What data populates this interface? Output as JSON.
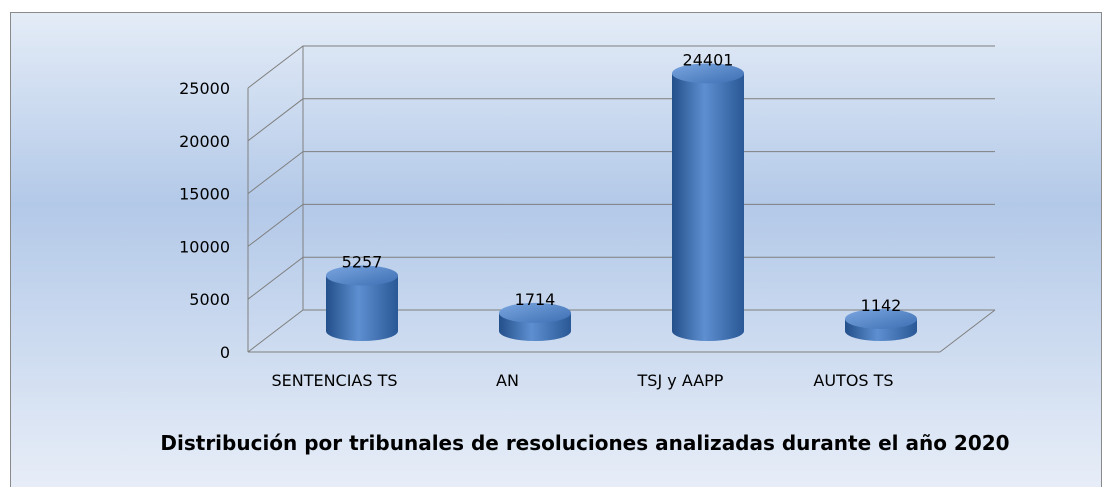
{
  "chart_data": {
    "type": "bar3d",
    "title": "Distribución por tribunales de resoluciones analizadas durante el año 2020",
    "categories": [
      "SENTENCIAS TS",
      "AN",
      "TSJ y AAPP",
      "AUTOS TS"
    ],
    "values": [
      5257,
      1714,
      24401,
      1142
    ],
    "color": "#4f81bd",
    "ylim": [
      0,
      25000
    ],
    "yticks": [
      0,
      5000,
      10000,
      15000,
      20000,
      25000
    ],
    "grid": true
  }
}
